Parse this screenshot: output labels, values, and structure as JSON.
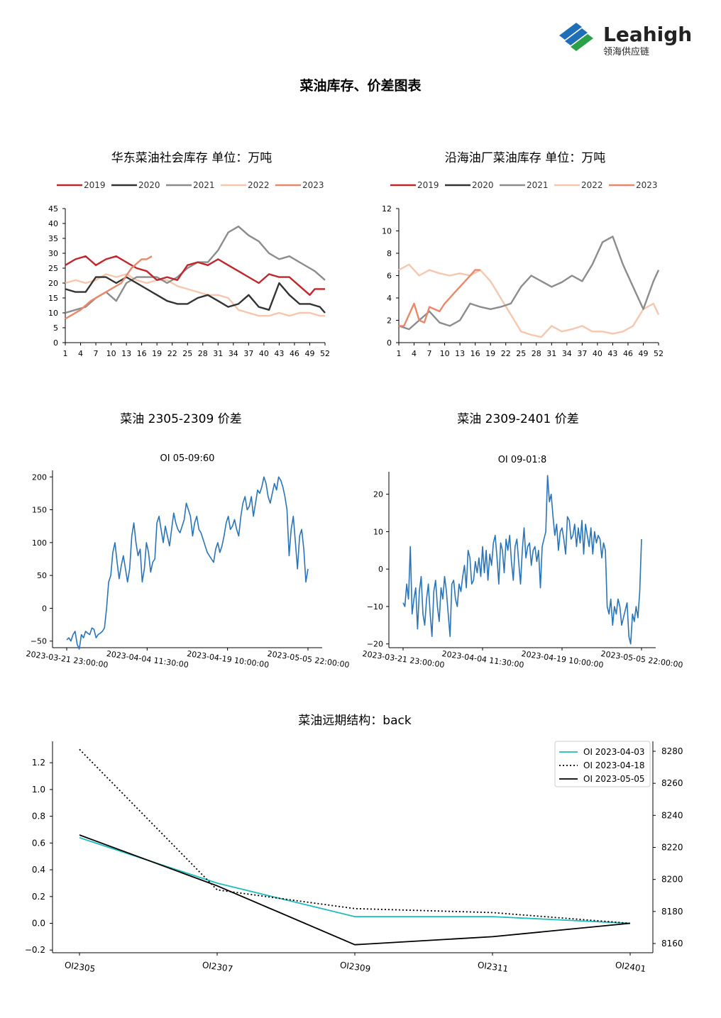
{
  "header": {
    "logo_text": "Leahigh",
    "logo_subtext": "领海供应链",
    "title": "菜油库存、价差图表"
  },
  "colors": {
    "c2019": "#c0262b",
    "c2020": "#333333",
    "c2021": "#8c8c8c",
    "c2022": "#f6c7ae",
    "c2023": "#e8886a",
    "blue": "#2a74b8",
    "teal": "#1fbcbc",
    "logo_blue": "#1f6fb8",
    "logo_green": "#2aa049"
  },
  "chart_data": [
    {
      "id": "east-china",
      "type": "line",
      "title": "华东菜油社会库存  单位：万吨",
      "xlim": [
        1,
        52
      ],
      "ylim": [
        0,
        45
      ],
      "xticks": [
        "1",
        "4",
        "7",
        "10",
        "13",
        "16",
        "19",
        "22",
        "25",
        "28",
        "31",
        "34",
        "37",
        "40",
        "43",
        "46",
        "49",
        "52"
      ],
      "yticks": [
        "0",
        "5",
        "10",
        "15",
        "20",
        "25",
        "30",
        "35",
        "40",
        "45"
      ],
      "series": [
        {
          "name": "2019",
          "color": "#c0262b",
          "x": [
            1,
            3,
            5,
            7,
            9,
            11,
            13,
            15,
            17,
            19,
            21,
            23,
            25,
            27,
            29,
            31,
            33,
            35,
            37,
            39,
            41,
            43,
            45,
            47,
            49,
            50,
            52
          ],
          "values": [
            26,
            28,
            29,
            26,
            28,
            29,
            27,
            25,
            24,
            21,
            22,
            21,
            26,
            27,
            26,
            28,
            26,
            24,
            22,
            20,
            23,
            22,
            22,
            19,
            16,
            18,
            18
          ]
        },
        {
          "name": "2020",
          "color": "#333333",
          "x": [
            1,
            3,
            5,
            7,
            9,
            11,
            13,
            15,
            17,
            19,
            21,
            23,
            25,
            27,
            29,
            31,
            33,
            35,
            37,
            39,
            41,
            43,
            45,
            47,
            49,
            51,
            52
          ],
          "values": [
            18,
            17,
            17,
            22,
            22,
            20,
            22,
            20,
            18,
            16,
            14,
            13,
            13,
            15,
            16,
            14,
            12,
            13,
            16,
            12,
            11,
            20,
            16,
            13,
            13,
            12,
            10
          ]
        },
        {
          "name": "2021",
          "color": "#8c8c8c",
          "x": [
            1,
            3,
            5,
            7,
            9,
            11,
            13,
            15,
            17,
            19,
            21,
            23,
            25,
            27,
            29,
            31,
            33,
            35,
            37,
            39,
            41,
            43,
            45,
            47,
            49,
            50,
            52
          ],
          "values": [
            10,
            11,
            12,
            15,
            17,
            14,
            20,
            22,
            22,
            22,
            20,
            22,
            25,
            27,
            27,
            31,
            37,
            39,
            36,
            34,
            30,
            28,
            29,
            27,
            25,
            24,
            21
          ]
        },
        {
          "name": "2022",
          "color": "#f6c7ae",
          "x": [
            1,
            3,
            5,
            7,
            9,
            11,
            13,
            15,
            17,
            19,
            21,
            23,
            25,
            27,
            29,
            31,
            33,
            35,
            37,
            39,
            41,
            43,
            45,
            47,
            49,
            51,
            52
          ],
          "values": [
            20,
            21,
            20,
            21,
            23,
            22,
            23,
            21,
            20,
            21,
            21,
            19,
            18,
            17,
            16,
            16,
            15,
            11,
            10,
            9,
            9,
            10,
            9,
            10,
            10,
            9,
            9
          ]
        },
        {
          "name": "2023",
          "color": "#e8886a",
          "x": [
            1,
            2,
            4,
            6,
            8,
            10,
            12,
            14,
            16,
            17,
            18
          ],
          "values": [
            8,
            9,
            11,
            14,
            16,
            18,
            20,
            25,
            28,
            28,
            29
          ]
        }
      ]
    },
    {
      "id": "coastal",
      "type": "line",
      "title": "沿海油厂菜油库存  单位：万吨",
      "xlim": [
        1,
        52
      ],
      "ylim": [
        0,
        12
      ],
      "xticks": [
        "1",
        "4",
        "7",
        "10",
        "13",
        "16",
        "19",
        "22",
        "25",
        "28",
        "31",
        "34",
        "37",
        "40",
        "43",
        "46",
        "49",
        "52"
      ],
      "yticks": [
        "0",
        "2",
        "4",
        "6",
        "8",
        "10",
        "12"
      ],
      "series": [
        {
          "name": "2019",
          "color": "#c0262b",
          "x": [],
          "values": []
        },
        {
          "name": "2020",
          "color": "#333333",
          "x": [],
          "values": []
        },
        {
          "name": "2021",
          "color": "#8c8c8c",
          "x": [
            1,
            3,
            5,
            7,
            9,
            11,
            13,
            15,
            17,
            19,
            21,
            23,
            25,
            27,
            29,
            31,
            33,
            35,
            37,
            39,
            41,
            43,
            45,
            47,
            49,
            51,
            52
          ],
          "values": [
            1.5,
            1.2,
            2.0,
            2.8,
            1.8,
            1.5,
            2.0,
            3.5,
            3.2,
            3.0,
            3.2,
            3.5,
            5.0,
            6.0,
            5.5,
            5.0,
            5.4,
            6.0,
            5.5,
            7.0,
            9.0,
            9.5,
            7.0,
            5.0,
            3.0,
            5.5,
            6.5
          ]
        },
        {
          "name": "2022",
          "color": "#f6c7ae",
          "x": [
            1,
            3,
            5,
            7,
            9,
            11,
            13,
            15,
            17,
            19,
            21,
            23,
            25,
            27,
            29,
            31,
            33,
            35,
            37,
            39,
            41,
            43,
            45,
            47,
            49,
            51,
            52
          ],
          "values": [
            6.5,
            7.0,
            6.0,
            6.5,
            6.2,
            6.0,
            6.2,
            6.0,
            6.5,
            5.5,
            4.0,
            2.5,
            1.0,
            0.7,
            0.5,
            1.5,
            1.0,
            1.2,
            1.5,
            1.0,
            1.0,
            0.8,
            1.0,
            1.5,
            3.0,
            3.5,
            2.5
          ]
        },
        {
          "name": "2023",
          "color": "#e8886a",
          "x": [
            1,
            2,
            3,
            4,
            5,
            6,
            7,
            8,
            9,
            10,
            11,
            12,
            13,
            14,
            15,
            16,
            17
          ],
          "values": [
            1.5,
            1.5,
            2.5,
            3.5,
            2.0,
            1.8,
            3.2,
            3.0,
            2.8,
            3.5,
            4.0,
            4.5,
            5.0,
            5.5,
            6.0,
            6.5,
            6.5
          ]
        }
      ]
    },
    {
      "id": "spread-1",
      "type": "line",
      "title": "菜油 2305-2309 价差",
      "subtitle": "OI 05-09:60",
      "ylim": [
        -60,
        210
      ],
      "yticks": [
        "200",
        "150",
        "100",
        "50",
        "0",
        "−50"
      ],
      "xticks": [
        "2023-03-21 23:00:00",
        "2023-04-04 11:30:00",
        "2023-04-19 10:00:00",
        "2023-05-05 22:00:00"
      ],
      "values": [
        -48,
        -45,
        -50,
        -40,
        -35,
        -55,
        -62,
        -40,
        -45,
        -35,
        -38,
        -40,
        -30,
        -32,
        -45,
        -40,
        -38,
        -35,
        -30,
        0,
        40,
        50,
        85,
        100,
        70,
        45,
        65,
        80,
        60,
        40,
        60,
        110,
        130,
        100,
        80,
        90,
        40,
        60,
        100,
        85,
        55,
        70,
        75,
        130,
        140,
        120,
        100,
        125,
        110,
        95,
        120,
        145,
        130,
        120,
        115,
        125,
        135,
        160,
        150,
        140,
        110,
        130,
        140,
        120,
        115,
        105,
        95,
        85,
        80,
        75,
        70,
        90,
        100,
        85,
        95,
        110,
        130,
        140,
        120,
        125,
        135,
        120,
        110,
        140,
        160,
        170,
        150,
        155,
        170,
        140,
        160,
        180,
        175,
        185,
        200,
        190,
        170,
        160,
        175,
        190,
        180,
        200,
        195,
        185,
        170,
        150,
        80,
        120,
        140,
        100,
        60,
        110,
        120,
        90,
        40,
        60
      ],
      "color": "#2a74b8"
    },
    {
      "id": "spread-2",
      "type": "line",
      "title": "菜油 2309-2401 价差",
      "subtitle": "OI 09-01:8",
      "ylim": [
        -21,
        26
      ],
      "yticks": [
        "20",
        "10",
        "0",
        "−10",
        "−20"
      ],
      "xticks": [
        "2023-03-21 23:00:00",
        "2023-04-04 11:30:00",
        "2023-04-19 10:00:00",
        "2023-05-05 22:00:00"
      ],
      "values": [
        -9,
        -10,
        -4,
        -8,
        6,
        -12,
        -8,
        -5,
        -16,
        -6,
        -2,
        -12,
        -15,
        -8,
        -4,
        -12,
        -18,
        -6,
        -3,
        -10,
        -14,
        -5,
        -8,
        -2,
        -6,
        -12,
        -18,
        -4,
        -3,
        -8,
        -10,
        -4,
        -6,
        -2,
        1,
        -5,
        5,
        3,
        -4,
        -3,
        2,
        -1,
        3,
        -2,
        6,
        -1,
        5,
        -3,
        4,
        1,
        7,
        9,
        3,
        -4,
        7,
        5,
        -1,
        8,
        5,
        9,
        2,
        -3,
        6,
        8,
        2,
        -4,
        5,
        11,
        3,
        6,
        7,
        1,
        5,
        6,
        2,
        5,
        -5,
        6,
        8,
        10,
        25,
        18,
        20,
        14,
        9,
        12,
        5,
        10,
        11,
        8,
        4,
        14,
        13,
        8,
        9,
        12,
        6,
        11,
        7,
        13,
        4,
        12,
        9,
        6,
        11,
        4,
        10,
        7,
        9,
        8,
        3,
        7,
        5,
        -10,
        -12,
        -8,
        -15,
        -10,
        -12,
        -8,
        -10,
        -15,
        -13,
        -11,
        -9,
        -18,
        -20,
        -12,
        -14,
        -10,
        -13,
        -6,
        8
      ],
      "color": "#2a74b8"
    },
    {
      "id": "forward",
      "type": "line",
      "title": "菜油远期结构：back",
      "categories": [
        "OI2305",
        "OI2307",
        "OI2309",
        "OI2311",
        "OI2401"
      ],
      "ylim": [
        -0.22,
        1.36
      ],
      "yticks": [
        "1.2",
        "1.0",
        "0.8",
        "0.6",
        "0.4",
        "0.2",
        "0.0",
        "−0.2"
      ],
      "yticks_right": [
        "8280",
        "8260",
        "8240",
        "8220",
        "8200",
        "8180",
        "8160"
      ],
      "legend": "top-right",
      "series": [
        {
          "name": "OI 2023-04-03",
          "color": "#1fbcbc",
          "style": "solid",
          "values": [
            0.64,
            0.3,
            0.05,
            0.05,
            0.0
          ]
        },
        {
          "name": "OI 2023-04-18",
          "color": "#000000",
          "style": "dotted",
          "values": [
            1.3,
            0.25,
            0.11,
            0.08,
            0.0
          ]
        },
        {
          "name": "OI 2023-05-05",
          "color": "#000000",
          "style": "solid",
          "values": [
            0.66,
            0.28,
            -0.16,
            -0.1,
            0.0
          ]
        }
      ]
    }
  ]
}
